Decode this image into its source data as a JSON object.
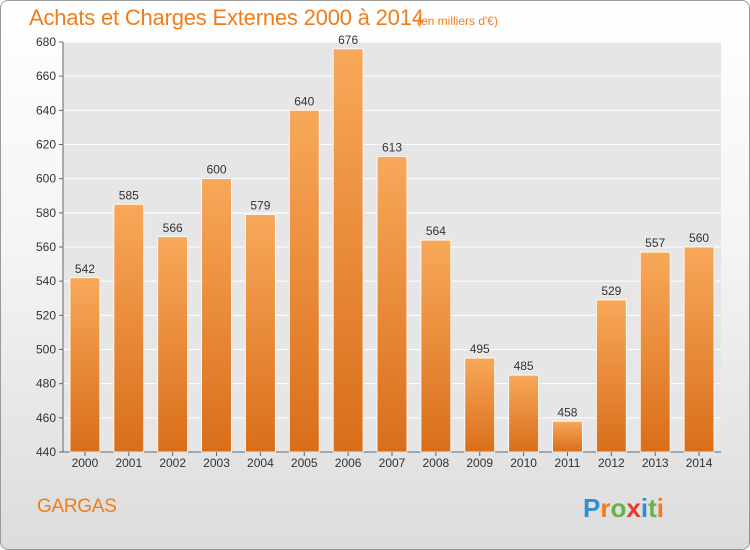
{
  "header": {
    "title": "Achats et Charges Externes 2000 à 2014",
    "subtitle": "(en milliers d'€)"
  },
  "footer": {
    "commune": "GARGAS",
    "logo_text": "Proxiti"
  },
  "colors": {
    "accent": "#f07c1a",
    "bar_light": "#f8a85a",
    "bar_dark": "#d96e1a",
    "axis_text": "#333333",
    "grid": "#ffffff",
    "plot_bg": "#e6e6e6"
  },
  "chart_data": {
    "type": "bar",
    "title": "Achats et Charges Externes 2000 à 2014",
    "subtitle": "(en milliers d'€)",
    "categories": [
      "2000",
      "2001",
      "2002",
      "2003",
      "2004",
      "2005",
      "2006",
      "2007",
      "2008",
      "2009",
      "2010",
      "2011",
      "2012",
      "2013",
      "2014"
    ],
    "values": [
      542,
      585,
      566,
      600,
      579,
      640,
      676,
      613,
      564,
      495,
      485,
      458,
      529,
      557,
      560
    ],
    "ylim": [
      440,
      680
    ],
    "yticks": [
      440,
      460,
      480,
      500,
      520,
      540,
      560,
      580,
      600,
      620,
      640,
      660,
      680
    ],
    "xlabel": "",
    "ylabel": "",
    "grid": true,
    "legend": "none"
  }
}
